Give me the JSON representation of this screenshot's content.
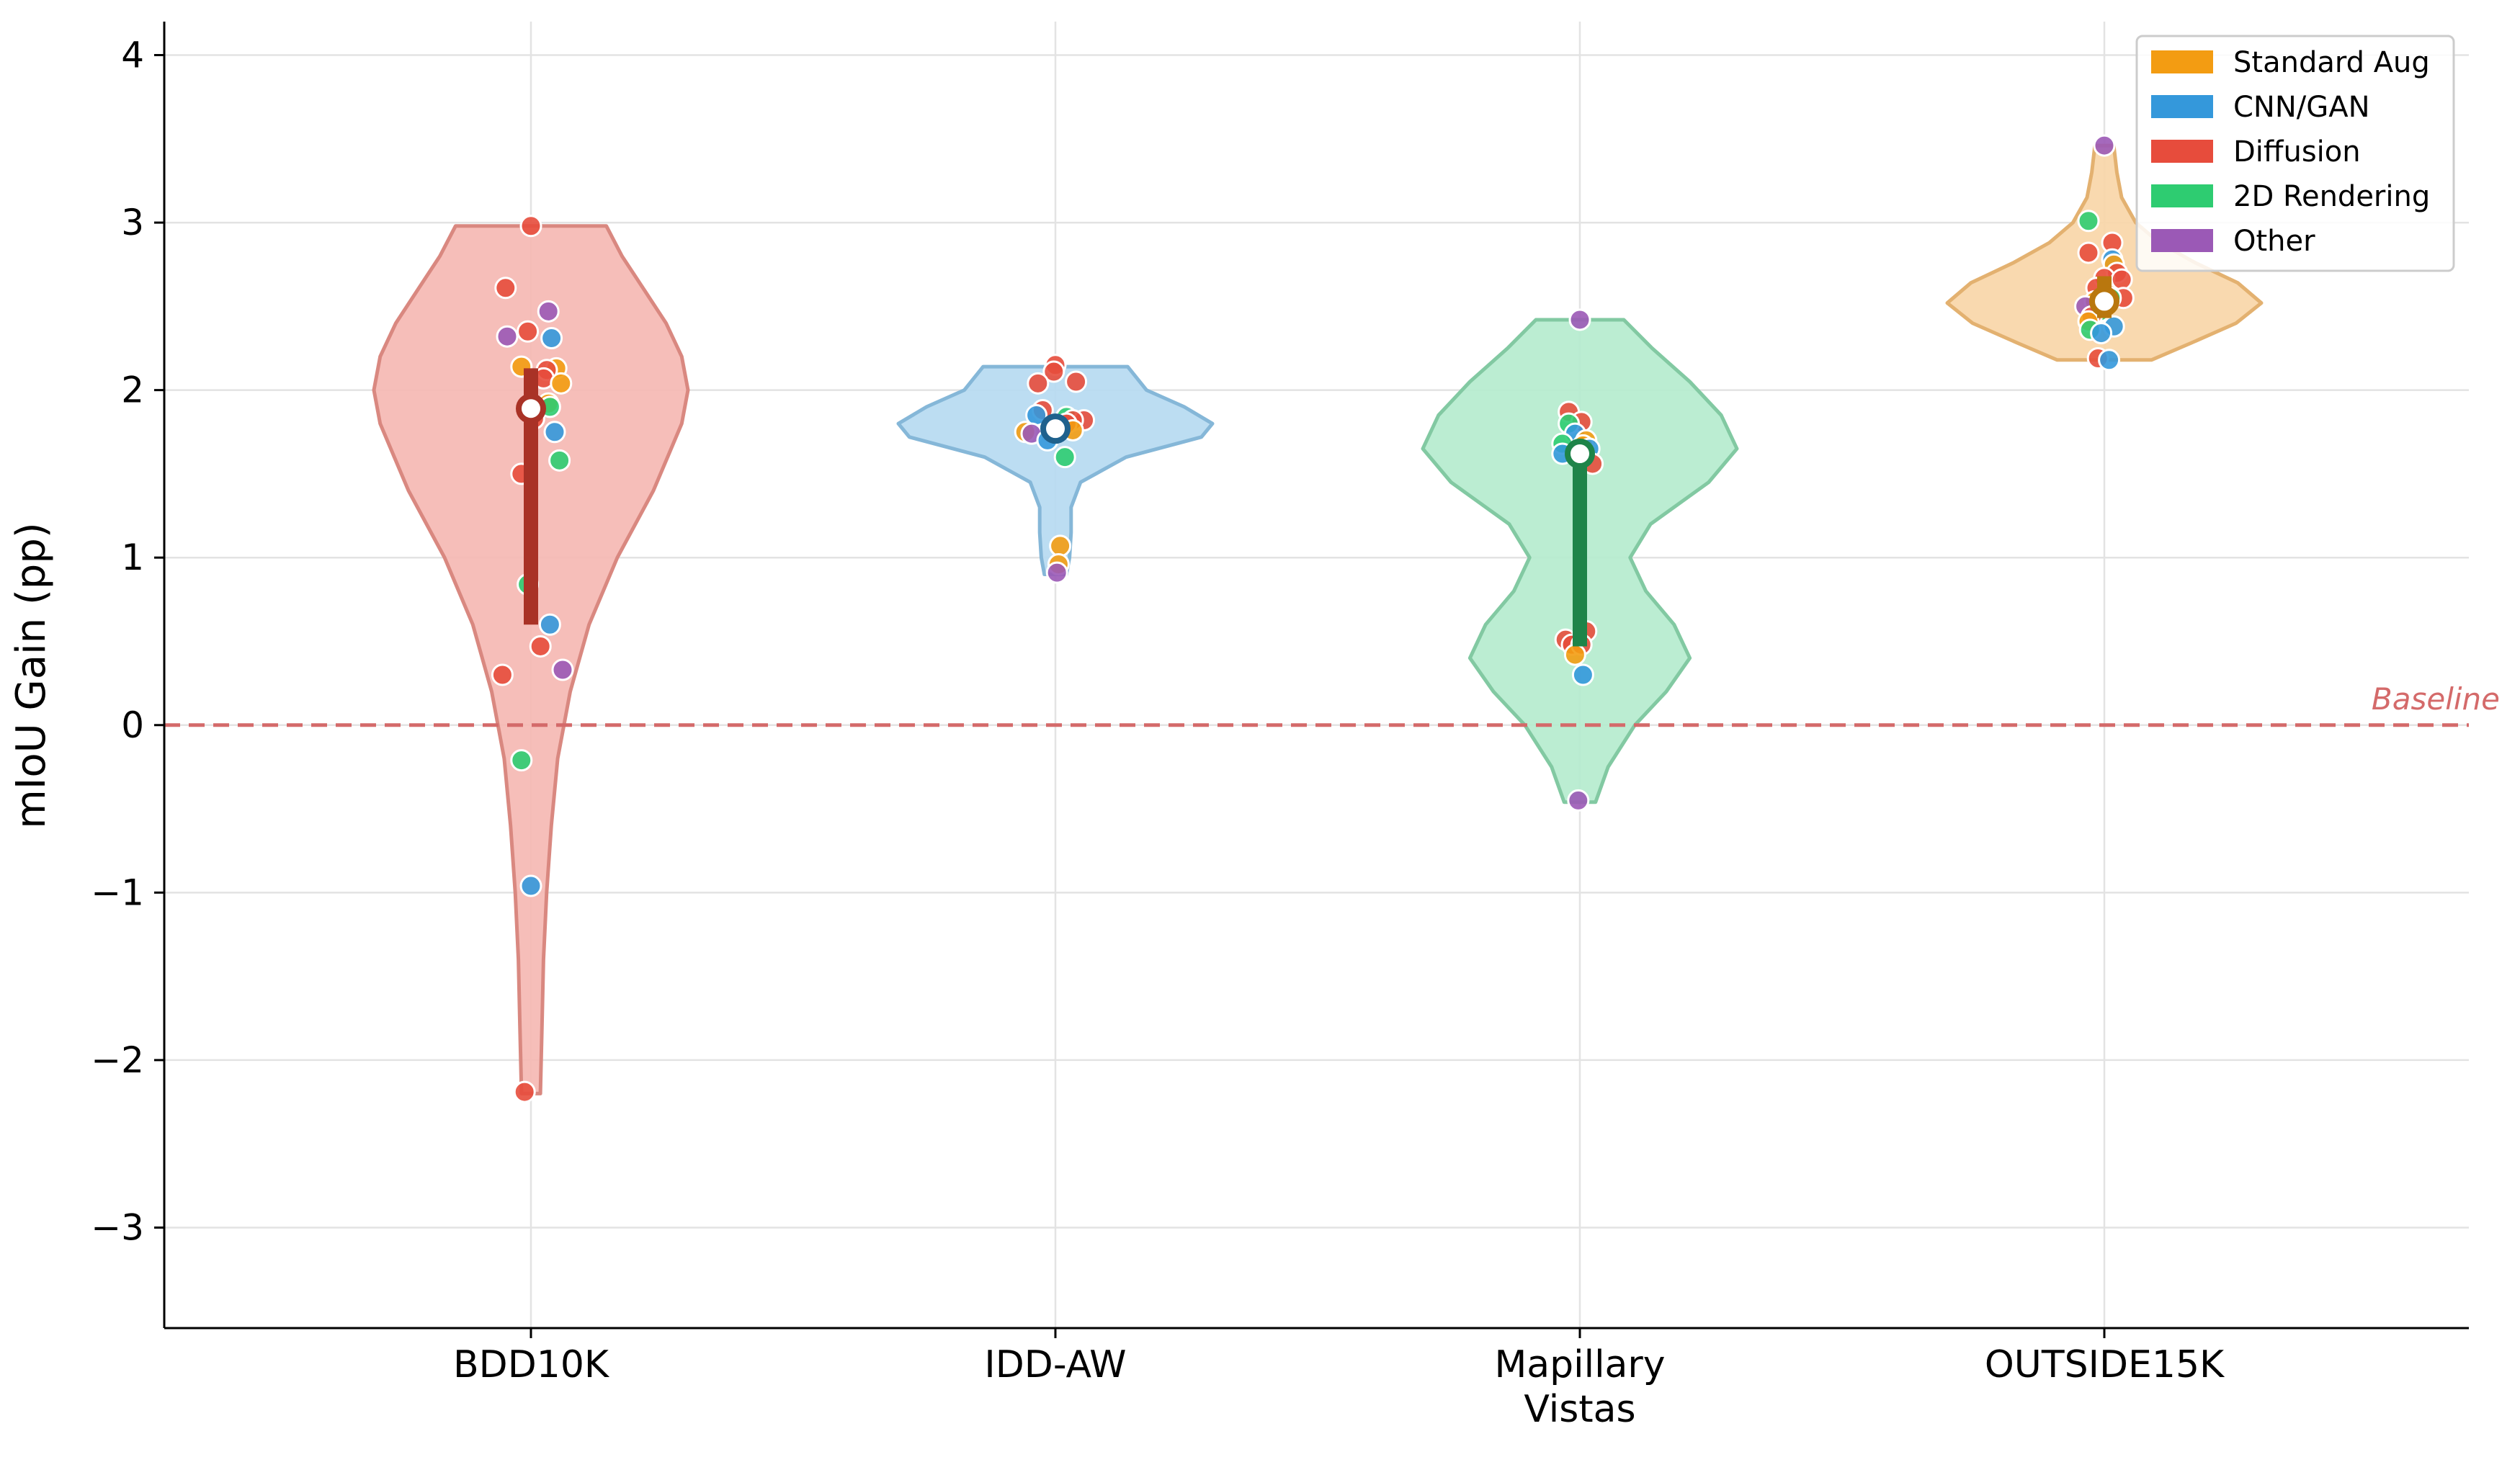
{
  "chart_data": {
    "type": "violin",
    "ylabel": "mIoU Gain (pp)",
    "xlabel": "",
    "ylim": [
      -3.6,
      4.2
    ],
    "yticks": [
      -3,
      -2,
      -1,
      0,
      1,
      2,
      3,
      4
    ],
    "ytick_labels": [
      "−3",
      "−2",
      "−1",
      "0",
      "1",
      "2",
      "3",
      "4"
    ],
    "grid": true,
    "baseline": {
      "value": 0,
      "label": "Baseline",
      "color": "#d46a6a"
    },
    "legend": {
      "placement": "top-right",
      "entries": [
        {
          "label": "Standard Aug",
          "color": "#f39c12"
        },
        {
          "label": "CNN/GAN",
          "color": "#3498db"
        },
        {
          "label": "Diffusion",
          "color": "#e74c3c"
        },
        {
          "label": "2D Rendering",
          "color": "#2ecc71"
        },
        {
          "label": "Other",
          "color": "#9b59b6"
        }
      ]
    },
    "categories": [
      {
        "name": "BDD10K",
        "label_lines": [
          "BDD10K"
        ],
        "fill": "#f5b7b1",
        "edge": "#d98880",
        "median_color": "#a93226",
        "median": 1.89,
        "iqr": [
          0.6,
          2.13
        ],
        "range": [
          -2.2,
          2.98
        ],
        "density": [
          [
            -2.2,
            0.06
          ],
          [
            -1.8,
            0.07
          ],
          [
            -1.4,
            0.08
          ],
          [
            -1.0,
            0.1
          ],
          [
            -0.6,
            0.13
          ],
          [
            -0.2,
            0.17
          ],
          [
            0.2,
            0.25
          ],
          [
            0.6,
            0.37
          ],
          [
            1.0,
            0.55
          ],
          [
            1.4,
            0.78
          ],
          [
            1.8,
            0.96
          ],
          [
            2.0,
            1.0
          ],
          [
            2.2,
            0.96
          ],
          [
            2.4,
            0.86
          ],
          [
            2.6,
            0.72
          ],
          [
            2.8,
            0.58
          ],
          [
            2.98,
            0.48
          ]
        ],
        "points": [
          {
            "y": 2.98,
            "group": "Diffusion",
            "dx": 0.0
          },
          {
            "y": 2.61,
            "group": "Diffusion",
            "dx": -0.16
          },
          {
            "y": 2.47,
            "group": "Other",
            "dx": 0.11
          },
          {
            "y": 2.35,
            "group": "Diffusion",
            "dx": -0.02
          },
          {
            "y": 2.32,
            "group": "Other",
            "dx": -0.15
          },
          {
            "y": 2.31,
            "group": "CNN/GAN",
            "dx": 0.13
          },
          {
            "y": 2.14,
            "group": "Standard Aug",
            "dx": -0.06
          },
          {
            "y": 2.13,
            "group": "Standard Aug",
            "dx": 0.16
          },
          {
            "y": 2.12,
            "group": "Diffusion",
            "dx": 0.1
          },
          {
            "y": 2.07,
            "group": "Diffusion",
            "dx": 0.08
          },
          {
            "y": 2.04,
            "group": "Standard Aug",
            "dx": 0.19
          },
          {
            "y": 1.92,
            "group": "Standard Aug",
            "dx": 0.11
          },
          {
            "y": 1.9,
            "group": "2D Rendering",
            "dx": 0.12
          },
          {
            "y": 1.83,
            "group": "Diffusion",
            "dx": 0.02
          },
          {
            "y": 1.75,
            "group": "CNN/GAN",
            "dx": 0.15
          },
          {
            "y": 1.58,
            "group": "2D Rendering",
            "dx": 0.18
          },
          {
            "y": 1.5,
            "group": "Diffusion",
            "dx": -0.06
          },
          {
            "y": 0.84,
            "group": "2D Rendering",
            "dx": -0.02
          },
          {
            "y": 0.6,
            "group": "CNN/GAN",
            "dx": 0.12
          },
          {
            "y": 0.47,
            "group": "Diffusion",
            "dx": 0.06
          },
          {
            "y": 0.33,
            "group": "Other",
            "dx": 0.2
          },
          {
            "y": 0.3,
            "group": "Diffusion",
            "dx": -0.18
          },
          {
            "y": -0.21,
            "group": "2D Rendering",
            "dx": -0.06
          },
          {
            "y": -0.96,
            "group": "CNN/GAN",
            "dx": 0.0
          },
          {
            "y": -2.19,
            "group": "Diffusion",
            "dx": -0.04
          }
        ]
      },
      {
        "name": "IDD-AW",
        "label_lines": [
          "IDD-AW"
        ],
        "fill": "#b5d9f1",
        "edge": "#85b7d8",
        "median_color": "#1f618d",
        "median": 1.77,
        "iqr": [
          1.7,
          1.83
        ],
        "range": [
          0.9,
          2.14
        ],
        "density": [
          [
            0.9,
            0.07
          ],
          [
            1.0,
            0.09
          ],
          [
            1.15,
            0.1
          ],
          [
            1.3,
            0.1
          ],
          [
            1.45,
            0.16
          ],
          [
            1.6,
            0.45
          ],
          [
            1.72,
            0.93
          ],
          [
            1.8,
            1.0
          ],
          [
            1.9,
            0.82
          ],
          [
            2.0,
            0.58
          ],
          [
            2.14,
            0.46
          ]
        ],
        "points": [
          {
            "y": 2.15,
            "group": "Diffusion",
            "dx": 0.0
          },
          {
            "y": 2.11,
            "group": "Diffusion",
            "dx": -0.01
          },
          {
            "y": 2.05,
            "group": "Diffusion",
            "dx": 0.13
          },
          {
            "y": 2.04,
            "group": "Diffusion",
            "dx": -0.11
          },
          {
            "y": 1.88,
            "group": "Diffusion",
            "dx": -0.08
          },
          {
            "y": 1.85,
            "group": "CNN/GAN",
            "dx": -0.12
          },
          {
            "y": 1.84,
            "group": "2D Rendering",
            "dx": 0.07
          },
          {
            "y": 1.82,
            "group": "Diffusion",
            "dx": 0.18
          },
          {
            "y": 1.82,
            "group": "Diffusion",
            "dx": 0.11
          },
          {
            "y": 1.8,
            "group": "Diffusion",
            "dx": 0.07
          },
          {
            "y": 1.76,
            "group": "Standard Aug",
            "dx": 0.11
          },
          {
            "y": 1.75,
            "group": "Standard Aug",
            "dx": -0.19
          },
          {
            "y": 1.74,
            "group": "Other",
            "dx": -0.15
          },
          {
            "y": 1.7,
            "group": "CNN/GAN",
            "dx": -0.05
          },
          {
            "y": 1.6,
            "group": "2D Rendering",
            "dx": 0.06
          },
          {
            "y": 1.07,
            "group": "Standard Aug",
            "dx": 0.03
          },
          {
            "y": 0.96,
            "group": "Standard Aug",
            "dx": 0.02
          },
          {
            "y": 0.91,
            "group": "Other",
            "dx": 0.01
          }
        ]
      },
      {
        "name": "Mapillary Vistas",
        "label_lines": [
          "Mapillary",
          "Vistas"
        ],
        "fill": "#b4ebcd",
        "edge": "#82c9a2",
        "median_color": "#1e8449",
        "median": 1.62,
        "iqr": [
          0.47,
          1.7
        ],
        "range": [
          -0.46,
          2.42
        ],
        "density": [
          [
            -0.46,
            0.1
          ],
          [
            -0.25,
            0.18
          ],
          [
            0.0,
            0.35
          ],
          [
            0.2,
            0.55
          ],
          [
            0.4,
            0.7
          ],
          [
            0.6,
            0.6
          ],
          [
            0.8,
            0.42
          ],
          [
            1.0,
            0.32
          ],
          [
            1.2,
            0.45
          ],
          [
            1.45,
            0.82
          ],
          [
            1.65,
            1.0
          ],
          [
            1.85,
            0.9
          ],
          [
            2.05,
            0.7
          ],
          [
            2.25,
            0.46
          ],
          [
            2.42,
            0.28
          ]
        ],
        "points": [
          {
            "y": 2.42,
            "group": "Other",
            "dx": 0.0
          },
          {
            "y": 1.87,
            "group": "Diffusion",
            "dx": -0.07
          },
          {
            "y": 1.81,
            "group": "Diffusion",
            "dx": 0.01
          },
          {
            "y": 1.8,
            "group": "2D Rendering",
            "dx": -0.07
          },
          {
            "y": 1.74,
            "group": "CNN/GAN",
            "dx": -0.03
          },
          {
            "y": 1.7,
            "group": "Standard Aug",
            "dx": 0.04
          },
          {
            "y": 1.68,
            "group": "2D Rendering",
            "dx": -0.11
          },
          {
            "y": 1.67,
            "group": "Standard Aug",
            "dx": 0.02
          },
          {
            "y": 1.65,
            "group": "CNN/GAN",
            "dx": 0.06
          },
          {
            "y": 1.62,
            "group": "CNN/GAN",
            "dx": -0.11
          },
          {
            "y": 1.56,
            "group": "Diffusion",
            "dx": 0.08
          },
          {
            "y": 0.56,
            "group": "Diffusion",
            "dx": 0.04
          },
          {
            "y": 0.51,
            "group": "Diffusion",
            "dx": -0.09
          },
          {
            "y": 0.48,
            "group": "Diffusion",
            "dx": -0.05
          },
          {
            "y": 0.48,
            "group": "Diffusion",
            "dx": 0.01
          },
          {
            "y": 0.42,
            "group": "Standard Aug",
            "dx": -0.03
          },
          {
            "y": 0.3,
            "group": "CNN/GAN",
            "dx": 0.02
          },
          {
            "y": -0.45,
            "group": "Other",
            "dx": -0.01
          }
        ]
      },
      {
        "name": "OUTSIDE15K",
        "label_lines": [
          "OUTSIDE15K"
        ],
        "fill": "#f8d5a6",
        "edge": "#e3b170",
        "median_color": "#b9770e",
        "median": 2.53,
        "iqr": [
          2.43,
          2.68
        ],
        "range": [
          2.18,
          3.46
        ],
        "density": [
          [
            2.18,
            0.3
          ],
          [
            2.28,
            0.55
          ],
          [
            2.4,
            0.84
          ],
          [
            2.52,
            1.0
          ],
          [
            2.64,
            0.85
          ],
          [
            2.76,
            0.58
          ],
          [
            2.88,
            0.35
          ],
          [
            3.0,
            0.2
          ],
          [
            3.15,
            0.11
          ],
          [
            3.3,
            0.08
          ],
          [
            3.46,
            0.06
          ]
        ],
        "points": [
          {
            "y": 3.46,
            "group": "Other",
            "dx": 0.0
          },
          {
            "y": 3.01,
            "group": "2D Rendering",
            "dx": -0.1
          },
          {
            "y": 2.88,
            "group": "Diffusion",
            "dx": 0.05
          },
          {
            "y": 2.82,
            "group": "Diffusion",
            "dx": -0.1
          },
          {
            "y": 2.78,
            "group": "CNN/GAN",
            "dx": 0.05
          },
          {
            "y": 2.75,
            "group": "Standard Aug",
            "dx": 0.06
          },
          {
            "y": 2.7,
            "group": "Diffusion",
            "dx": 0.08
          },
          {
            "y": 2.67,
            "group": "Diffusion",
            "dx": 0.0
          },
          {
            "y": 2.66,
            "group": "Diffusion",
            "dx": 0.11
          },
          {
            "y": 2.61,
            "group": "Diffusion",
            "dx": -0.05
          },
          {
            "y": 2.55,
            "group": "Diffusion",
            "dx": 0.12
          },
          {
            "y": 2.55,
            "group": "2D Rendering",
            "dx": 0.04
          },
          {
            "y": 2.53,
            "group": "Standard Aug",
            "dx": -0.06
          },
          {
            "y": 2.5,
            "group": "Other",
            "dx": -0.12
          },
          {
            "y": 2.47,
            "group": "2D Rendering",
            "dx": -0.03
          },
          {
            "y": 2.44,
            "group": "Diffusion",
            "dx": -0.08
          },
          {
            "y": 2.41,
            "group": "Standard Aug",
            "dx": -0.1
          },
          {
            "y": 2.38,
            "group": "CNN/GAN",
            "dx": 0.06
          },
          {
            "y": 2.36,
            "group": "2D Rendering",
            "dx": -0.09
          },
          {
            "y": 2.34,
            "group": "CNN/GAN",
            "dx": -0.02
          },
          {
            "y": 2.19,
            "group": "Diffusion",
            "dx": -0.04
          },
          {
            "y": 2.18,
            "group": "CNN/GAN",
            "dx": 0.03
          }
        ]
      }
    ]
  }
}
